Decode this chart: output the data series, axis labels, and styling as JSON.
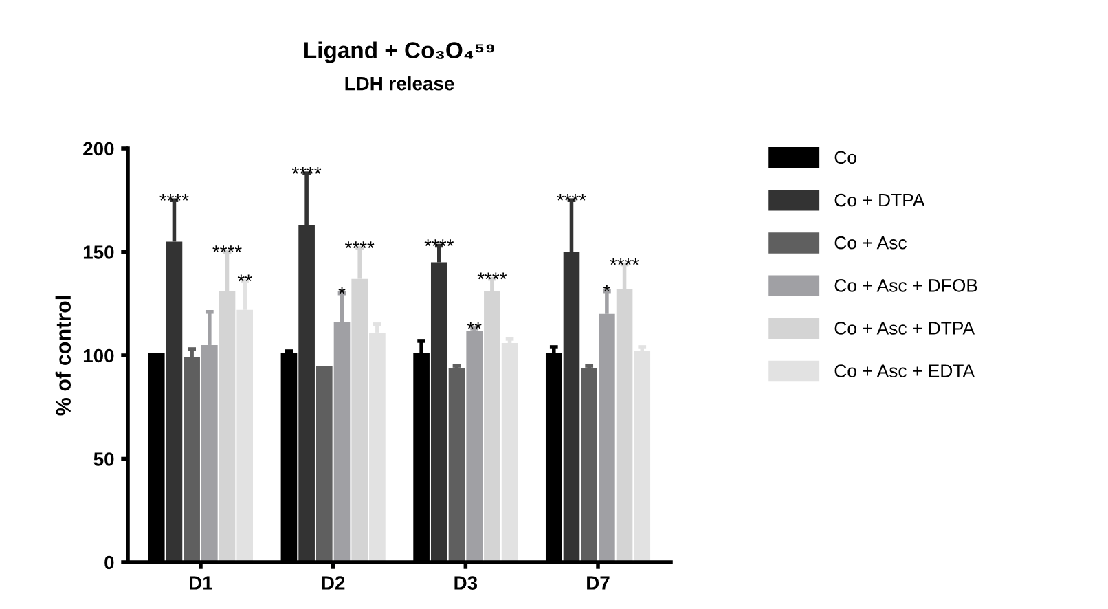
{
  "chart_data": {
    "type": "bar",
    "title": "Ligand + Co₃O₄⁵⁹",
    "subtitle": "LDH release",
    "ylabel": "% of control",
    "categories": [
      "D1",
      "D2",
      "D3",
      "D7"
    ],
    "series": [
      {
        "name": "Co",
        "color": "#000000",
        "values": [
          101,
          101,
          101,
          101
        ],
        "errors": [
          null,
          [
            101,
            102
          ],
          [
            101,
            107
          ],
          [
            101,
            104
          ]
        ]
      },
      {
        "name": "Co + DTPA",
        "color": "#333333",
        "values": [
          155,
          163,
          145,
          150
        ],
        "errors": [
          [
            155,
            175
          ],
          [
            163,
            188
          ],
          [
            145,
            153
          ],
          [
            150,
            175
          ]
        ],
        "value_labels": [
          "****",
          "****",
          "****",
          "****"
        ]
      },
      {
        "name": "Co + Asc",
        "color": "#5f5f5f",
        "values": [
          99,
          95,
          94,
          94
        ],
        "errors": [
          [
            99,
            103
          ],
          null,
          [
            94,
            95
          ],
          [
            94,
            95
          ]
        ]
      },
      {
        "name": "Co + Asc + DFOB",
        "color": "#a0a0a4",
        "values": [
          105,
          116,
          112,
          120
        ],
        "errors": [
          [
            105,
            121
          ],
          [
            116,
            130
          ],
          [
            112,
            113
          ],
          [
            120,
            131
          ]
        ],
        "value_labels": [
          null,
          "*",
          "**",
          "*"
        ]
      },
      {
        "name": "Co + Asc + DTPA",
        "color": "#d4d4d4",
        "values": [
          131,
          137,
          131,
          132
        ],
        "errors": [
          [
            131,
            150
          ],
          [
            137,
            152
          ],
          [
            131,
            137
          ],
          [
            132,
            144
          ]
        ],
        "value_labels": [
          "****",
          "****",
          "****",
          "****"
        ]
      },
      {
        "name": "Co + Asc + EDTA",
        "color": "#e2e2e2",
        "values": [
          122,
          111,
          106,
          102
        ],
        "errors": [
          [
            122,
            136
          ],
          [
            111,
            115
          ],
          [
            106,
            108
          ],
          [
            102,
            104
          ]
        ],
        "value_labels": [
          "**",
          null,
          null,
          null
        ]
      }
    ],
    "ylim": [
      0,
      200
    ],
    "yticks": [
      0,
      50,
      100,
      150,
      200
    ],
    "grid": false,
    "legend": "right"
  }
}
